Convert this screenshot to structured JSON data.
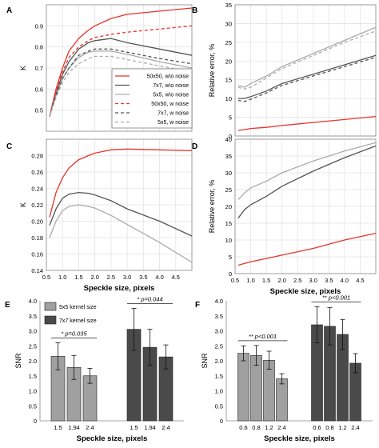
{
  "chart_data": [
    {
      "panel": "A",
      "type": "line",
      "ylabel": "K",
      "xlabel": "",
      "xlim": [
        0.5,
        5.0
      ],
      "ylim": [
        0.4,
        1.0
      ],
      "yticks": [
        0.5,
        0.6,
        0.7,
        0.8,
        0.9
      ],
      "xticks": [],
      "grid": true,
      "legend_position": "bottom-right",
      "series": [
        {
          "name": "50x50, w\\o noise",
          "color": "#e8332a",
          "dash": "solid",
          "x": [
            0.6,
            0.8,
            1.0,
            1.2,
            1.5,
            1.8,
            2.0,
            2.5,
            3.0,
            4.0,
            5.0
          ],
          "y": [
            0.47,
            0.6,
            0.7,
            0.78,
            0.84,
            0.88,
            0.9,
            0.935,
            0.955,
            0.97,
            0.985
          ]
        },
        {
          "name": "7x7, w\\o noise",
          "color": "#555555",
          "dash": "solid",
          "x": [
            0.6,
            0.8,
            1.0,
            1.2,
            1.5,
            1.8,
            2.0,
            2.5,
            3.0,
            4.0,
            5.0
          ],
          "y": [
            0.47,
            0.58,
            0.67,
            0.73,
            0.79,
            0.82,
            0.83,
            0.84,
            0.82,
            0.79,
            0.76
          ]
        },
        {
          "name": "5x5, w\\o noise",
          "color": "#aaaaaa",
          "dash": "solid",
          "x": [
            0.6,
            0.8,
            1.0,
            1.2,
            1.5,
            1.8,
            2.0,
            2.5,
            3.0,
            4.0,
            5.0
          ],
          "y": [
            0.47,
            0.57,
            0.65,
            0.7,
            0.75,
            0.775,
            0.78,
            0.78,
            0.765,
            0.73,
            0.7
          ]
        },
        {
          "name": "50x50, w noise",
          "color": "#e8332a",
          "dash": "dash",
          "x": [
            0.6,
            0.8,
            1.0,
            1.2,
            1.5,
            1.8,
            2.0,
            2.5,
            3.0,
            4.0,
            5.0
          ],
          "y": [
            0.47,
            0.59,
            0.68,
            0.75,
            0.8,
            0.83,
            0.845,
            0.86,
            0.87,
            0.885,
            0.9
          ]
        },
        {
          "name": "7x7, w noise",
          "color": "#555555",
          "dash": "dash",
          "x": [
            0.6,
            0.8,
            1.0,
            1.2,
            1.5,
            1.8,
            2.0,
            2.5,
            3.0,
            4.0,
            5.0
          ],
          "y": [
            0.47,
            0.57,
            0.65,
            0.7,
            0.76,
            0.78,
            0.79,
            0.79,
            0.775,
            0.745,
            0.72
          ]
        },
        {
          "name": "5x5, w noise",
          "color": "#aaaaaa",
          "dash": "dash",
          "x": [
            0.6,
            0.8,
            1.0,
            1.2,
            1.5,
            1.8,
            2.0,
            2.5,
            3.0,
            4.0,
            5.0
          ],
          "y": [
            0.47,
            0.56,
            0.63,
            0.68,
            0.72,
            0.745,
            0.755,
            0.755,
            0.74,
            0.71,
            0.68
          ]
        }
      ]
    },
    {
      "panel": "B",
      "type": "line",
      "ylabel": "Relative error, %",
      "xlabel": "",
      "xlim": [
        0.5,
        5.0
      ],
      "ylim": [
        0,
        35
      ],
      "yticks": [
        0,
        5,
        10,
        15,
        20,
        25,
        30,
        35
      ],
      "xticks": [],
      "grid": true,
      "series": [
        {
          "color": "#aaaaaa",
          "dash": "solid",
          "x": [
            0.6,
            0.8,
            1.0,
            1.5,
            2.0,
            3.0,
            4.0,
            5.0
          ],
          "y": [
            13.5,
            13.0,
            14.0,
            16.0,
            18.5,
            22.0,
            25.5,
            29.0
          ]
        },
        {
          "color": "#aaaaaa",
          "dash": "dash",
          "x": [
            0.6,
            0.8,
            1.0,
            1.5,
            2.0,
            3.0,
            4.0,
            5.0
          ],
          "y": [
            13.0,
            12.5,
            13.0,
            15.5,
            18.0,
            21.5,
            25.0,
            28.0
          ]
        },
        {
          "color": "#555555",
          "dash": "solid",
          "x": [
            0.6,
            0.8,
            1.0,
            1.5,
            2.0,
            3.0,
            4.0,
            5.0
          ],
          "y": [
            10.0,
            10.0,
            10.5,
            12.0,
            14.0,
            16.5,
            19.0,
            21.5
          ]
        },
        {
          "color": "#555555",
          "dash": "dash",
          "x": [
            0.6,
            0.8,
            1.0,
            1.5,
            2.0,
            3.0,
            4.0,
            5.0
          ],
          "y": [
            9.5,
            9.2,
            9.8,
            11.5,
            13.5,
            16.0,
            18.5,
            21.0
          ]
        },
        {
          "color": "#e8332a",
          "dash": "solid",
          "x": [
            0.6,
            0.8,
            1.0,
            1.5,
            2.0,
            3.0,
            4.0,
            5.0
          ],
          "y": [
            1.5,
            1.7,
            2.0,
            2.3,
            2.8,
            3.6,
            4.4,
            5.2
          ]
        }
      ]
    },
    {
      "panel": "C",
      "type": "line",
      "ylabel": "K",
      "xlabel": "",
      "xlim": [
        0.5,
        5.0
      ],
      "ylim": [
        0.14,
        0.3
      ],
      "yticks": [
        0.14,
        0.16,
        0.18,
        0.2,
        0.22,
        0.24,
        0.26,
        0.28
      ],
      "xticks": [],
      "grid": true,
      "series": [
        {
          "color": "#e8332a",
          "dash": "solid",
          "x": [
            0.6,
            0.8,
            1.0,
            1.2,
            1.5,
            1.8,
            2.0,
            2.5,
            3.0,
            4.0,
            5.0
          ],
          "y": [
            0.205,
            0.235,
            0.253,
            0.265,
            0.275,
            0.28,
            0.283,
            0.287,
            0.288,
            0.287,
            0.286
          ]
        },
        {
          "color": "#555555",
          "dash": "solid",
          "x": [
            0.6,
            0.8,
            1.0,
            1.2,
            1.5,
            1.8,
            2.0,
            2.5,
            3.0,
            4.0,
            5.0
          ],
          "y": [
            0.195,
            0.215,
            0.228,
            0.233,
            0.235,
            0.234,
            0.232,
            0.225,
            0.215,
            0.2,
            0.182
          ]
        },
        {
          "color": "#aaaaaa",
          "dash": "solid",
          "x": [
            0.6,
            0.8,
            1.0,
            1.2,
            1.5,
            1.8,
            2.0,
            2.5,
            3.0,
            4.0,
            5.0
          ],
          "y": [
            0.18,
            0.2,
            0.213,
            0.218,
            0.22,
            0.218,
            0.216,
            0.207,
            0.196,
            0.174,
            0.15
          ]
        }
      ]
    },
    {
      "panel": "D",
      "type": "line",
      "ylabel": "Relative error, %",
      "xlabel": "",
      "xlim": [
        0.5,
        5.0
      ],
      "ylim": [
        0,
        40
      ],
      "yticks": [
        0,
        5,
        10,
        15,
        20,
        25,
        30,
        35,
        40
      ],
      "xticks": [],
      "grid": true,
      "series": [
        {
          "color": "#aaaaaa",
          "dash": "solid",
          "x": [
            0.6,
            0.8,
            1.0,
            1.5,
            2.0,
            3.0,
            4.0,
            5.0
          ],
          "y": [
            22.0,
            24.0,
            25.5,
            27.5,
            30.0,
            33.5,
            36.5,
            39.0
          ]
        },
        {
          "color": "#555555",
          "dash": "solid",
          "x": [
            0.6,
            0.8,
            1.0,
            1.5,
            2.0,
            3.0,
            4.0,
            5.0
          ],
          "y": [
            16.5,
            19.0,
            20.5,
            23.0,
            26.0,
            30.5,
            34.5,
            38.0
          ]
        },
        {
          "color": "#e8332a",
          "dash": "solid",
          "x": [
            0.6,
            0.8,
            1.0,
            1.5,
            2.0,
            3.0,
            4.0,
            5.0
          ],
          "y": [
            2.5,
            3.0,
            3.5,
            4.5,
            5.5,
            7.5,
            10.0,
            12.0
          ]
        }
      ]
    },
    {
      "panel": "E",
      "type": "bar",
      "ylabel": "SNR",
      "xlabel": "Speckle size, pixels",
      "ylim": [
        0,
        4.0
      ],
      "yticks": [
        0,
        0.5,
        1.0,
        1.5,
        2.0,
        2.5,
        3.0,
        3.5,
        4.0
      ],
      "legend_position": "top-left",
      "groups": [
        {
          "name": "5x5 kernel size",
          "color": "#a0a0a0",
          "categories": [
            "1.5",
            "1.94",
            "2.4"
          ],
          "values": [
            2.15,
            1.78,
            1.5
          ],
          "errors": [
            0.45,
            0.4,
            0.25
          ]
        },
        {
          "name": "7x7 kernel size",
          "color": "#4a4a4a",
          "categories": [
            "1.5",
            "1.94",
            "2.4"
          ],
          "values": [
            3.05,
            2.45,
            2.13
          ],
          "errors": [
            0.7,
            0.6,
            0.4
          ]
        }
      ],
      "annotations": [
        "* p=0.035",
        "* p=0.044"
      ]
    },
    {
      "panel": "F",
      "type": "bar",
      "ylabel": "SNR",
      "xlabel": "Speckle size, pixels",
      "ylim": [
        0,
        4.0
      ],
      "yticks": [
        0,
        0.5,
        1.0,
        1.5,
        2.0,
        2.5,
        3.0,
        3.5,
        4.0
      ],
      "groups": [
        {
          "name": "5x5 kernel size",
          "color": "#a0a0a0",
          "categories": [
            "0.6",
            "0.8",
            "1.2",
            "2.4"
          ],
          "values": [
            2.25,
            2.18,
            2.02,
            1.4
          ],
          "errors": [
            0.25,
            0.33,
            0.3,
            0.17
          ]
        },
        {
          "name": "7x7 kernel size",
          "color": "#4a4a4a",
          "categories": [
            "0.6",
            "0.8",
            "1.2",
            "2.4"
          ],
          "values": [
            3.2,
            3.15,
            2.88,
            1.92
          ],
          "errors": [
            0.6,
            0.62,
            0.5,
            0.32
          ]
        }
      ],
      "annotations": [
        "** p<0.001",
        "** p<0.001"
      ]
    }
  ],
  "panel_labels": [
    "A",
    "B",
    "C",
    "D",
    "E",
    "F"
  ],
  "shared_axis": {
    "xlabel": "Speckle size, pixels",
    "xticks": [
      0.5,
      1.0,
      1.5,
      2.0,
      2.5,
      3.0,
      3.5,
      4.0,
      4.5
    ],
    "xtick_labels": [
      "0.5",
      "1.0",
      "1.5",
      "2.0",
      "2.5",
      "3.0",
      "3.5",
      "4.0",
      "4.5"
    ]
  }
}
